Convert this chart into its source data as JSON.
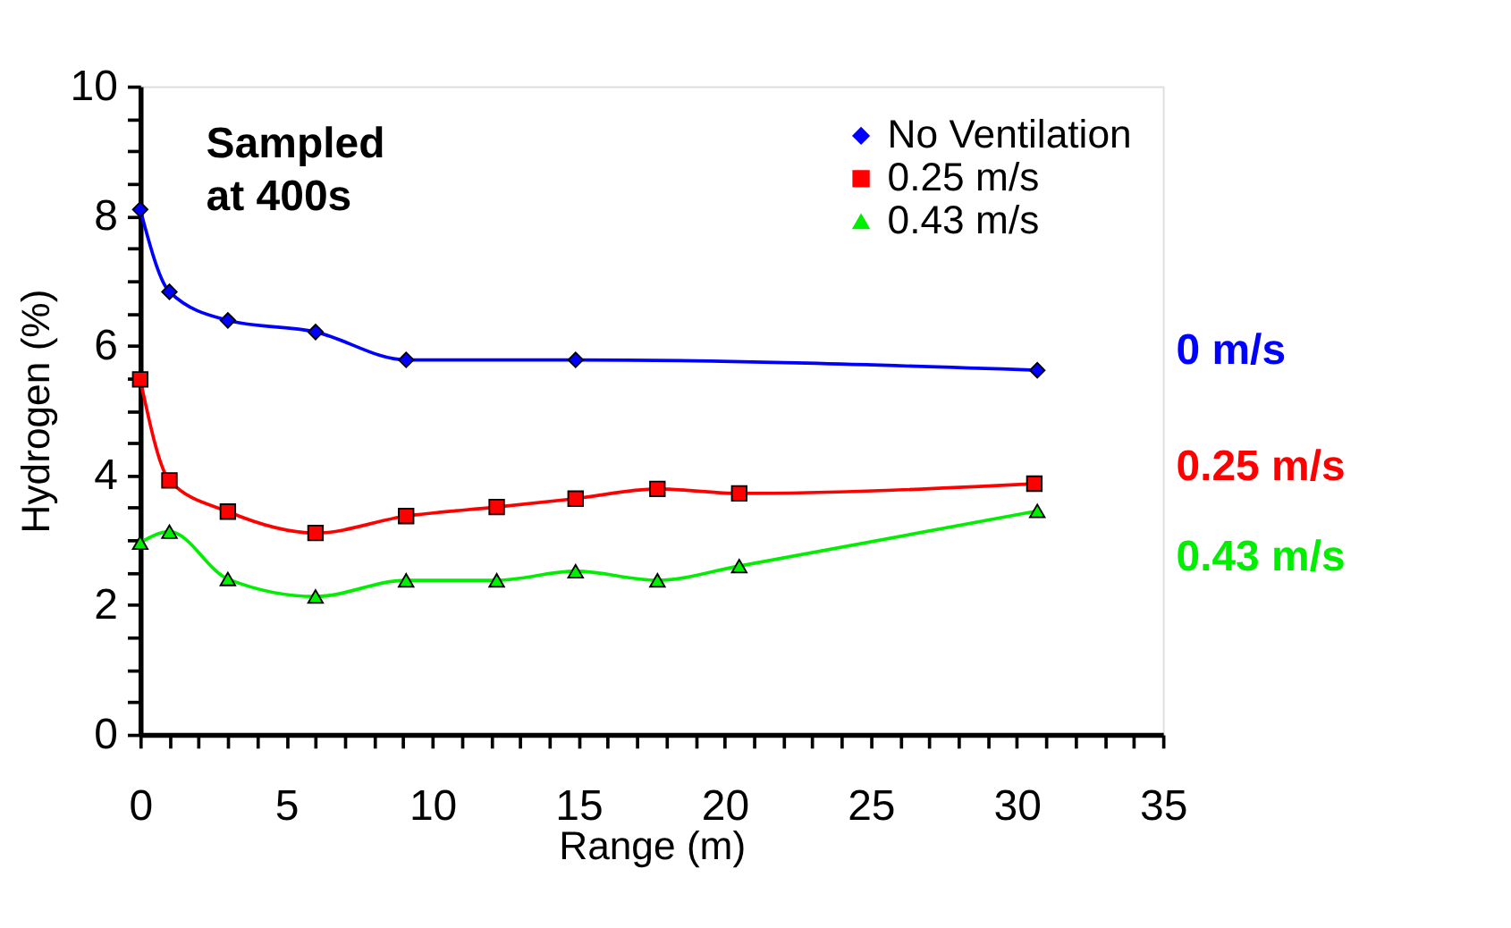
{
  "chart_data": {
    "type": "line",
    "xlabel": "Range (m)",
    "ylabel": "Hydrogen (%)",
    "xlim": [
      0,
      35
    ],
    "ylim": [
      0,
      10
    ],
    "xticks": [
      0,
      {
        "value": 1,
        "label": null
      },
      {
        "value": 2,
        "label": null
      },
      {
        "value": 3,
        "label": null
      },
      {
        "value": 4,
        "label": null
      },
      5,
      {
        "value": 6,
        "label": null
      },
      {
        "value": 7,
        "label": null
      },
      {
        "value": 8,
        "label": null
      },
      {
        "value": 9,
        "label": null
      },
      10,
      {
        "value": 11,
        "label": null
      },
      {
        "value": 12,
        "label": null
      },
      {
        "value": 13,
        "label": null
      },
      {
        "value": 14,
        "label": null
      },
      15,
      {
        "value": 16,
        "label": null
      },
      {
        "value": 17,
        "label": null
      },
      {
        "value": 18,
        "label": null
      },
      {
        "value": 19,
        "label": null
      },
      20,
      {
        "value": 21,
        "label": null
      },
      {
        "value": 22,
        "label": null
      },
      {
        "value": 23,
        "label": null
      },
      {
        "value": 24,
        "label": null
      },
      25,
      {
        "value": 26,
        "label": null
      },
      {
        "value": 27,
        "label": null
      },
      {
        "value": 28,
        "label": null
      },
      {
        "value": 29,
        "label": null
      },
      30,
      {
        "value": 31,
        "label": null
      },
      {
        "value": 32,
        "label": null
      },
      {
        "value": 33,
        "label": null
      },
      {
        "value": 34,
        "label": null
      },
      35
    ],
    "yticks": [
      0,
      {
        "value": 0.5,
        "label": null
      },
      {
        "value": 1,
        "label": null
      },
      {
        "value": 1.5,
        "label": null
      },
      2,
      {
        "value": 2.5,
        "label": null
      },
      {
        "value": 3,
        "label": null
      },
      {
        "value": 3.5,
        "label": null
      },
      4,
      {
        "value": 4.5,
        "label": null
      },
      {
        "value": 5,
        "label": null
      },
      {
        "value": 5.5,
        "label": null
      },
      6,
      {
        "value": 6.5,
        "label": null
      },
      {
        "value": 7,
        "label": null
      },
      {
        "value": 7.5,
        "label": null
      },
      8,
      {
        "value": 8.5,
        "label": null
      },
      {
        "value": 9,
        "label": null
      },
      {
        "value": 9.5,
        "label": null
      },
      10
    ],
    "grid": false,
    "legend": "top right",
    "series": [
      {
        "name": "No Ventilation",
        "color": "#0000ff",
        "marker": "diamond",
        "x": [
          0,
          1,
          3,
          6,
          9.1,
          14.9,
          30.7
        ],
        "values": [
          8.1,
          6.83,
          6.39,
          6.21,
          5.78,
          5.78,
          5.62
        ]
      },
      {
        "name": "0.25 m/s",
        "color": "#ff0000",
        "marker": "square",
        "x": [
          0,
          1,
          3,
          6,
          9.1,
          12.2,
          14.9,
          17.7,
          20.5,
          30.6
        ],
        "values": [
          5.48,
          3.92,
          3.44,
          3.11,
          3.37,
          3.51,
          3.64,
          3.79,
          3.72,
          3.87
        ]
      },
      {
        "name": "0.43 m/s",
        "color": "#00ee00",
        "marker": "triangle",
        "x": [
          0,
          1,
          3,
          6,
          9.1,
          12.2,
          14.9,
          17.7,
          20.5,
          30.7
        ],
        "values": [
          2.96,
          3.13,
          2.4,
          2.13,
          2.38,
          2.38,
          2.52,
          2.38,
          2.6,
          3.45
        ]
      }
    ],
    "annotations": [
      "Sampled\nat 400s",
      "0 m/s",
      "0.25 m/s",
      "0.43 m/s"
    ]
  }
}
